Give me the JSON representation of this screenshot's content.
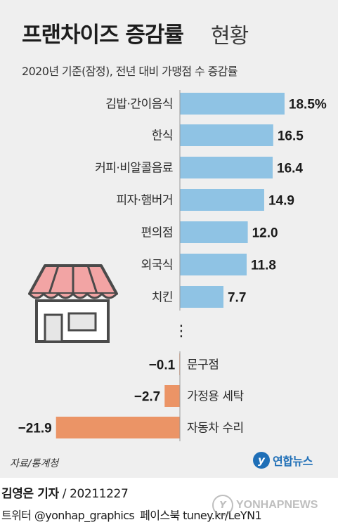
{
  "header": {
    "title": "프랜차이즈 증감률",
    "title_suffix": "현황",
    "subtitle": "2020년 기준(잠정), 전년 대비 가맹점 수 증감률"
  },
  "chart_data": {
    "type": "bar",
    "orientation": "horizontal",
    "unit": "%",
    "categories": [
      "김밥·간이음식",
      "한식",
      "커피·비알콜음료",
      "피자·햄버거",
      "편의점",
      "외국식",
      "치킨",
      "문구점",
      "가정용 세탁",
      "자동차 수리"
    ],
    "values": [
      18.5,
      16.5,
      16.4,
      14.9,
      12.0,
      11.8,
      7.7,
      -0.1,
      -2.7,
      -21.9
    ],
    "value_labels": [
      "18.5%",
      "16.5",
      "16.4",
      "14.9",
      "12.0",
      "11.8",
      "7.7",
      "−0.1",
      "−2.7",
      "−21.9"
    ],
    "gap_marker": "⋮",
    "positive_color": "#8fc3e4",
    "negative_color": "#eb9466"
  },
  "footer": {
    "source": "자료/통계청",
    "logo_text": "연합뉴스",
    "reporter": "김영은 기자",
    "date": "/ 20211227",
    "twitter": "트위터 @yonhap_graphics",
    "facebook": "페이스북 tuney.kr/LeYN1",
    "watermark": "YONHAPNEWS"
  },
  "illustration": {
    "icon": "store-icon"
  }
}
